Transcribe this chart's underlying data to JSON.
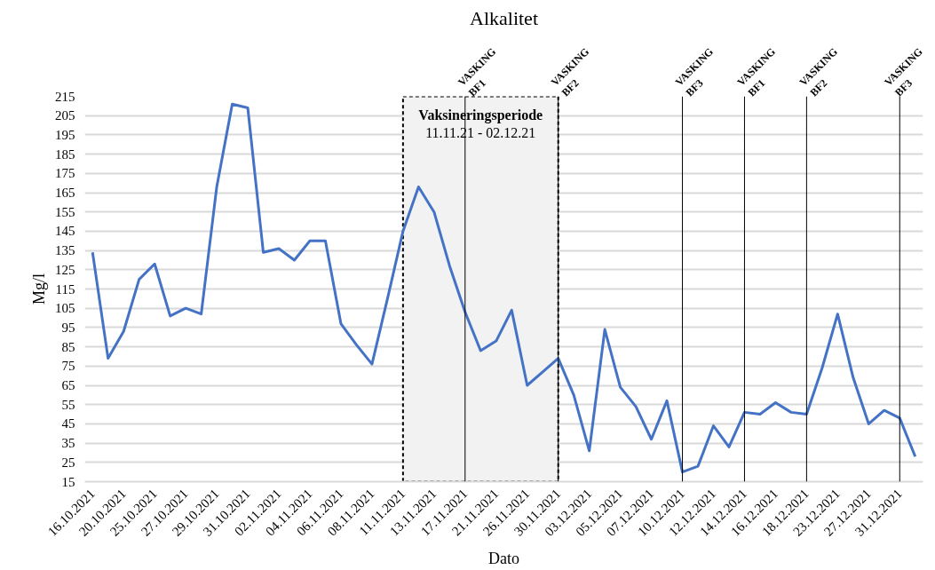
{
  "chart_data": {
    "type": "line",
    "title": "Alkalitet",
    "xlabel": "Dato",
    "ylabel": "Mg/l",
    "categories": [
      "16.10.2021",
      null,
      "20.10.2021",
      null,
      "25.10.2021",
      null,
      "27.10.2021",
      null,
      "29.10.2021",
      null,
      "31.10.2021",
      null,
      "02.11.2021",
      null,
      "04.11.2021",
      null,
      "06.11.2021",
      null,
      "08.11.2021",
      null,
      "11.11.2021",
      null,
      "13.11.2021",
      null,
      "17.11.2021",
      null,
      "21.11.2021",
      null,
      "26.11.2021",
      null,
      "30.11.2021",
      null,
      "03.12.2021",
      null,
      "05.12.2021",
      null,
      "07.12.2021",
      null,
      "10.12.2021",
      null,
      "12.12.2021",
      null,
      "14.12.2021",
      null,
      "16.12.2021",
      null,
      "18.12.2021",
      null,
      "23.12.2021",
      null,
      "27.12.2021",
      null,
      "31.12.2021",
      null
    ],
    "series": [
      {
        "color": "#4472c4",
        "values": [
          134,
          79,
          93,
          120,
          128,
          101,
          105,
          102,
          168,
          211,
          209,
          134,
          136,
          130,
          140,
          140,
          97,
          86,
          76,
          110,
          145,
          168,
          155,
          127,
          103,
          83,
          88,
          104,
          65,
          72,
          79,
          60,
          31,
          94,
          64,
          54,
          37,
          57,
          20,
          23,
          44,
          33,
          51,
          50,
          56,
          51,
          50,
          74,
          102,
          69,
          45,
          52,
          48,
          28
        ]
      }
    ],
    "ylim": [
      15,
      215
    ],
    "yticks": [
      15,
      25,
      35,
      45,
      55,
      65,
      75,
      85,
      95,
      105,
      115,
      125,
      135,
      145,
      155,
      165,
      175,
      185,
      195,
      205,
      215
    ],
    "grid": "y",
    "bands": [
      {
        "axis": "x",
        "from": "11.11.2021",
        "to": "30.11.2021",
        "label": "Vaksineringsperiode\n11.11.21 - 02.12.21",
        "color": "#f2f2f2"
      }
    ],
    "ref_lines": [
      {
        "axis": "x",
        "value": "17.11.2021",
        "label": "VASKING\nBF1"
      },
      {
        "axis": "x",
        "value": "30.11.2021",
        "label": "VASKING\nBF2"
      },
      {
        "axis": "x",
        "value": "10.12.2021",
        "label": "VASKING\nBF3"
      },
      {
        "axis": "x",
        "value": "14.12.2021",
        "label": "VASKING\nBF1"
      },
      {
        "axis": "x",
        "value": "18.12.2021",
        "label": "VASKING\nBF2"
      },
      {
        "axis": "x",
        "value": "31.12.2021",
        "label": "VASKING\nBF3"
      }
    ]
  }
}
